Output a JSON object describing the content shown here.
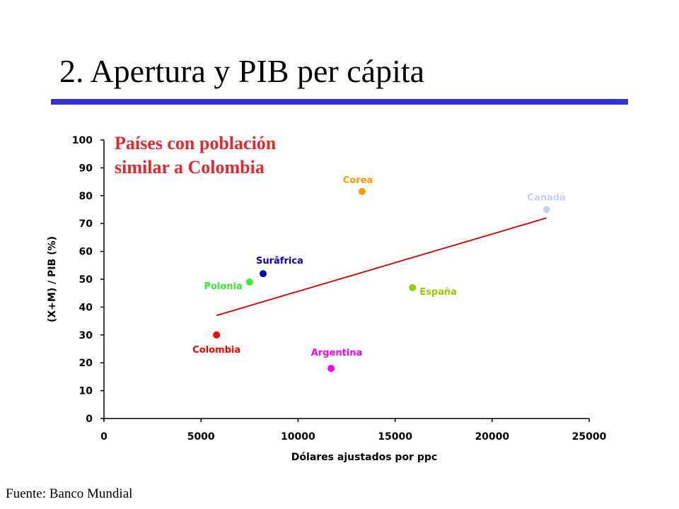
{
  "slide": {
    "title": "2. Apertura y PIB per cápita",
    "footer": "Fuente: Banco Mundial"
  },
  "chart_data": {
    "type": "scatter",
    "title_lines": [
      "Países con población",
      "similar a Colombia"
    ],
    "title_color": "#e8262c",
    "xlabel": "Dólares ajustados por ppc",
    "ylabel": "(X+M) / PIB (%)",
    "xlim": [
      0,
      25000
    ],
    "ylim": [
      0,
      100
    ],
    "x_ticks": [
      0,
      5000,
      10000,
      15000,
      20000,
      25000
    ],
    "y_ticks": [
      0,
      10,
      20,
      30,
      40,
      50,
      60,
      70,
      80,
      90,
      100
    ],
    "grid": false,
    "points": [
      {
        "name": "Colombia",
        "x": 5800,
        "y": 30,
        "color": "#ff0000"
      },
      {
        "name": "Polonia",
        "x": 7500,
        "y": 49,
        "color": "#33ee33"
      },
      {
        "name": "Surâfrica",
        "x": 8200,
        "y": 52,
        "color": "#0000cc"
      },
      {
        "name": "Argentina",
        "x": 11700,
        "y": 18,
        "color": "#ff00ff"
      },
      {
        "name": "Corea",
        "x": 13300,
        "y": 81.5,
        "color": "#ff9900"
      },
      {
        "name": "España",
        "x": 15900,
        "y": 47,
        "color": "#99cc00"
      },
      {
        "name": "Canadá",
        "x": 22800,
        "y": 75,
        "color": "#c8cdf5"
      }
    ],
    "trendline": {
      "x": [
        5800,
        22800
      ],
      "y": [
        37,
        72
      ],
      "color": "#cc0000"
    }
  }
}
